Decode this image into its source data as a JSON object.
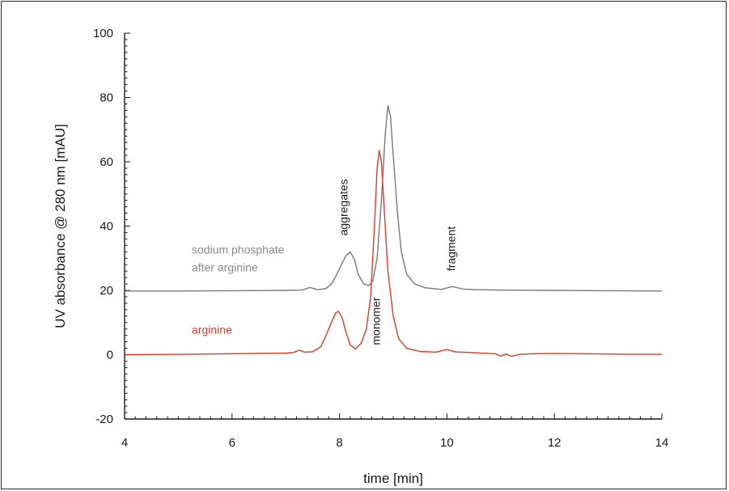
{
  "chart_data": {
    "type": "line",
    "title": "",
    "xlabel": "time [min]",
    "ylabel": "UV absorbance @ 280 nm [mAU]",
    "xlim": [
      4,
      14
    ],
    "ylim": [
      -20,
      100
    ],
    "xticks": [
      4,
      6,
      8,
      10,
      12,
      14
    ],
    "yticks": [
      -20,
      0,
      20,
      40,
      60,
      80,
      100
    ],
    "grid": false,
    "series": [
      {
        "name": "sodium phosphate after arginine",
        "color": "#7a7a7a",
        "points": [
          [
            4.0,
            19.8
          ],
          [
            5.0,
            19.8
          ],
          [
            6.0,
            19.9
          ],
          [
            7.0,
            20.0
          ],
          [
            7.3,
            20.1
          ],
          [
            7.45,
            20.9
          ],
          [
            7.6,
            20.2
          ],
          [
            7.75,
            20.6
          ],
          [
            7.85,
            22.0
          ],
          [
            7.95,
            25.0
          ],
          [
            8.05,
            28.5
          ],
          [
            8.12,
            30.8
          ],
          [
            8.2,
            32.0
          ],
          [
            8.28,
            29.5
          ],
          [
            8.35,
            25.0
          ],
          [
            8.45,
            22.0
          ],
          [
            8.55,
            21.5
          ],
          [
            8.62,
            23.0
          ],
          [
            8.7,
            30.0
          ],
          [
            8.78,
            48.0
          ],
          [
            8.85,
            68.0
          ],
          [
            8.9,
            77.5
          ],
          [
            8.95,
            74.0
          ],
          [
            9.0,
            62.0
          ],
          [
            9.08,
            44.0
          ],
          [
            9.15,
            32.0
          ],
          [
            9.25,
            25.0
          ],
          [
            9.4,
            22.0
          ],
          [
            9.6,
            20.8
          ],
          [
            9.9,
            20.3
          ],
          [
            10.1,
            21.2
          ],
          [
            10.3,
            20.4
          ],
          [
            10.6,
            20.2
          ],
          [
            11.0,
            20.1
          ],
          [
            12.0,
            20.0
          ],
          [
            13.0,
            19.9
          ],
          [
            14.0,
            19.8
          ]
        ]
      },
      {
        "name": "arginine",
        "color": "#e23a24",
        "points": [
          [
            4.0,
            0.0
          ],
          [
            5.0,
            0.1
          ],
          [
            6.0,
            0.3
          ],
          [
            7.0,
            0.5
          ],
          [
            7.15,
            0.7
          ],
          [
            7.25,
            1.4
          ],
          [
            7.35,
            0.8
          ],
          [
            7.5,
            0.9
          ],
          [
            7.65,
            2.5
          ],
          [
            7.75,
            6.0
          ],
          [
            7.85,
            10.0
          ],
          [
            7.93,
            13.0
          ],
          [
            7.98,
            13.5
          ],
          [
            8.05,
            11.5
          ],
          [
            8.12,
            7.0
          ],
          [
            8.2,
            3.0
          ],
          [
            8.3,
            1.8
          ],
          [
            8.4,
            3.5
          ],
          [
            8.5,
            8.0
          ],
          [
            8.58,
            18.0
          ],
          [
            8.65,
            40.0
          ],
          [
            8.7,
            58.0
          ],
          [
            8.74,
            63.5
          ],
          [
            8.78,
            60.0
          ],
          [
            8.83,
            46.0
          ],
          [
            8.9,
            26.0
          ],
          [
            9.0,
            12.0
          ],
          [
            9.1,
            5.0
          ],
          [
            9.25,
            2.0
          ],
          [
            9.5,
            1.0
          ],
          [
            9.8,
            0.8
          ],
          [
            10.0,
            1.6
          ],
          [
            10.15,
            0.9
          ],
          [
            10.5,
            0.6
          ],
          [
            10.9,
            0.3
          ],
          [
            11.0,
            -0.4
          ],
          [
            11.1,
            0.2
          ],
          [
            11.2,
            -0.5
          ],
          [
            11.35,
            0.1
          ],
          [
            11.6,
            0.3
          ],
          [
            12.0,
            0.4
          ],
          [
            13.0,
            0.2
          ],
          [
            14.0,
            0.1
          ]
        ]
      }
    ],
    "annotations": [
      {
        "text": "aggregates",
        "x": 8.15,
        "y": 37,
        "rotation": -90
      },
      {
        "text": "monomer",
        "x": 8.75,
        "y": 3,
        "rotation": -90
      },
      {
        "text": "fragment",
        "x": 10.15,
        "y": 26,
        "rotation": -90
      }
    ],
    "series_labels": [
      {
        "lines": [
          "sodium phosphate",
          "after arginine"
        ],
        "x": 5.25,
        "y": 31.5,
        "color": "#8a8a8a"
      },
      {
        "lines": [
          "arginine"
        ],
        "x": 5.25,
        "y": 6.5,
        "color": "#e23a24"
      }
    ]
  }
}
